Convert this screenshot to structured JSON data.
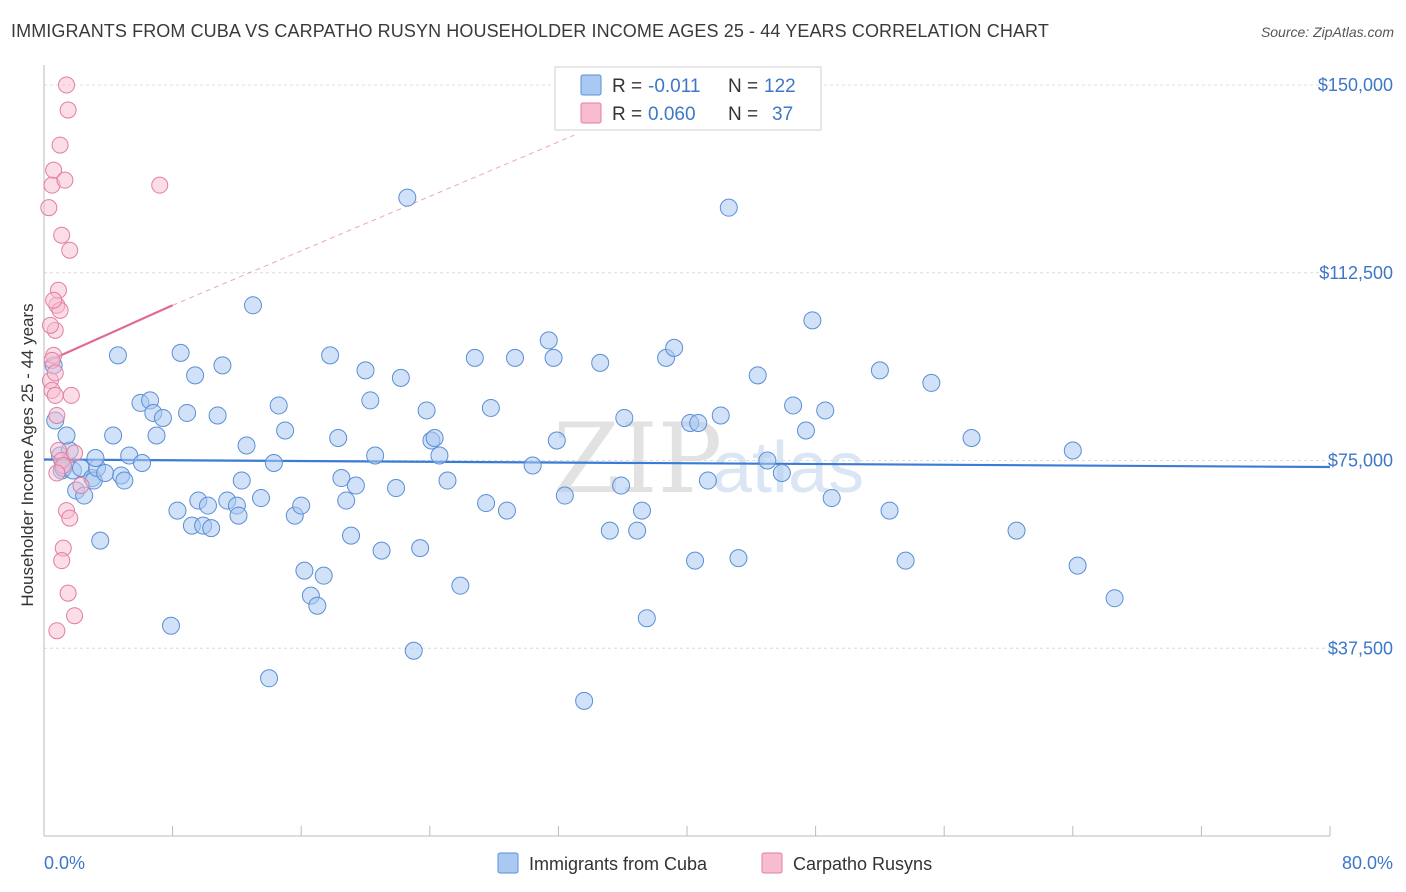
{
  "title": "IMMIGRANTS FROM CUBA VS CARPATHO RUSYN HOUSEHOLDER INCOME AGES 25 - 44 YEARS CORRELATION CHART",
  "source": "Source: ZipAtlas.com",
  "colors": {
    "blue_fill": "#a9c9f2",
    "blue_stroke": "#5b8fd4",
    "blue_line": "#3a7bd5",
    "pink_fill": "#f7bcd0",
    "pink_stroke": "#e27ea0",
    "pink_line": "#e06a94",
    "grid": "#dcdcdc",
    "label_blue": "#3d77c8"
  },
  "legend": {
    "rows": [
      {
        "r_label": "R =",
        "r_value": "-0.011",
        "n_label": "N =",
        "n_value": "122"
      },
      {
        "r_label": "R =",
        "r_value": "0.060",
        "n_label": "N =",
        "n_value": "37"
      }
    ]
  },
  "bottom_legend": [
    "Immigrants from Cuba",
    "Carpatho Rusyns"
  ],
  "watermark": {
    "zip": "ZIP",
    "atlas": "atlas"
  },
  "chart_data": {
    "type": "scatter",
    "xlabel": "",
    "ylabel": "Householder Income Ages 25 - 44 years",
    "x_tick_labels": [
      "0.0%",
      "80.0%"
    ],
    "y_tick_labels": [
      "$150,000",
      "$112,500",
      "$75,000",
      "$37,500"
    ],
    "y_ticks": [
      150000,
      112500,
      75000,
      37500
    ],
    "xlim": [
      0,
      80
    ],
    "ylim": [
      0,
      153000
    ],
    "grid": true,
    "legend_position": "top-center",
    "series": [
      {
        "name": "Immigrants from Cuba",
        "points": [
          [
            0.6,
            94000
          ],
          [
            0.7,
            83000
          ],
          [
            1.0,
            76000
          ],
          [
            1.1,
            73000
          ],
          [
            1.2,
            73500
          ],
          [
            1.6,
            77000
          ],
          [
            1.8,
            73000
          ],
          [
            2.0,
            69000
          ],
          [
            2.3,
            73500
          ],
          [
            2.5,
            68000
          ],
          [
            3.0,
            71500
          ],
          [
            3.1,
            71000
          ],
          [
            3.3,
            73500
          ],
          [
            3.5,
            59000
          ],
          [
            3.8,
            72500
          ],
          [
            4.3,
            80000
          ],
          [
            4.6,
            96000
          ],
          [
            4.8,
            72000
          ],
          [
            5.0,
            71000
          ],
          [
            5.3,
            76000
          ],
          [
            6.0,
            86500
          ],
          [
            6.1,
            74500
          ],
          [
            6.6,
            87000
          ],
          [
            6.8,
            84500
          ],
          [
            7.0,
            80000
          ],
          [
            7.4,
            83500
          ],
          [
            7.9,
            42000
          ],
          [
            8.3,
            65000
          ],
          [
            8.5,
            96500
          ],
          [
            8.9,
            84500
          ],
          [
            9.2,
            62000
          ],
          [
            9.4,
            92000
          ],
          [
            9.6,
            67000
          ],
          [
            9.9,
            62000
          ],
          [
            10.2,
            66000
          ],
          [
            10.4,
            61500
          ],
          [
            10.8,
            84000
          ],
          [
            11.1,
            94000
          ],
          [
            11.4,
            67000
          ],
          [
            12.0,
            66000
          ],
          [
            12.1,
            64000
          ],
          [
            12.3,
            71000
          ],
          [
            12.6,
            78000
          ],
          [
            13.0,
            106000
          ],
          [
            13.5,
            67500
          ],
          [
            14.0,
            31500
          ],
          [
            14.3,
            74500
          ],
          [
            14.6,
            86000
          ],
          [
            15.0,
            81000
          ],
          [
            15.6,
            64000
          ],
          [
            16.0,
            66000
          ],
          [
            16.2,
            53000
          ],
          [
            16.6,
            48000
          ],
          [
            17.0,
            46000
          ],
          [
            17.4,
            52000
          ],
          [
            17.8,
            96000
          ],
          [
            18.3,
            79500
          ],
          [
            18.5,
            71500
          ],
          [
            18.8,
            67000
          ],
          [
            19.1,
            60000
          ],
          [
            19.4,
            70000
          ],
          [
            20.0,
            93000
          ],
          [
            20.3,
            87000
          ],
          [
            20.6,
            76000
          ],
          [
            21.0,
            57000
          ],
          [
            21.9,
            69500
          ],
          [
            22.2,
            91500
          ],
          [
            23.0,
            37000
          ],
          [
            23.4,
            57500
          ],
          [
            23.8,
            85000
          ],
          [
            24.1,
            79000
          ],
          [
            24.3,
            79500
          ],
          [
            24.6,
            76000
          ],
          [
            25.1,
            71000
          ],
          [
            25.9,
            50000
          ],
          [
            26.8,
            95500
          ],
          [
            27.5,
            66500
          ],
          [
            27.8,
            85500
          ],
          [
            28.8,
            65000
          ],
          [
            29.3,
            95500
          ],
          [
            30.4,
            74000
          ],
          [
            31.4,
            99000
          ],
          [
            31.7,
            95500
          ],
          [
            31.9,
            79000
          ],
          [
            32.4,
            68000
          ],
          [
            33.6,
            27000
          ],
          [
            34.6,
            94500
          ],
          [
            35.2,
            61000
          ],
          [
            35.9,
            70000
          ],
          [
            36.1,
            83500
          ],
          [
            36.9,
            61000
          ],
          [
            37.2,
            65000
          ],
          [
            37.5,
            43500
          ],
          [
            38.7,
            95500
          ],
          [
            39.2,
            97500
          ],
          [
            40.2,
            82500
          ],
          [
            40.5,
            55000
          ],
          [
            40.7,
            82500
          ],
          [
            41.3,
            71000
          ],
          [
            42.1,
            84000
          ],
          [
            42.6,
            125500
          ],
          [
            43.2,
            55500
          ],
          [
            44.4,
            92000
          ],
          [
            45.0,
            75000
          ],
          [
            45.9,
            72500
          ],
          [
            46.6,
            86000
          ],
          [
            47.4,
            81000
          ],
          [
            47.8,
            103000
          ],
          [
            48.6,
            85000
          ],
          [
            49.0,
            67500
          ],
          [
            52.0,
            93000
          ],
          [
            52.6,
            65000
          ],
          [
            53.6,
            55000
          ],
          [
            55.2,
            90500
          ],
          [
            57.7,
            79500
          ],
          [
            60.5,
            61000
          ],
          [
            64.0,
            77000
          ],
          [
            64.3,
            54000
          ],
          [
            66.6,
            47500
          ],
          [
            22.6,
            127500
          ],
          [
            1.4,
            80000
          ],
          [
            3.2,
            75500
          ]
        ]
      },
      {
        "name": "Carpatho Rusyns",
        "points": [
          [
            0.3,
            125500
          ],
          [
            0.5,
            130000
          ],
          [
            0.6,
            133000
          ],
          [
            0.7,
            101000
          ],
          [
            0.8,
            106000
          ],
          [
            0.9,
            109000
          ],
          [
            1.0,
            105000
          ],
          [
            0.6,
            96000
          ],
          [
            0.4,
            91000
          ],
          [
            0.5,
            89000
          ],
          [
            0.7,
            88000
          ],
          [
            0.8,
            84000
          ],
          [
            1.1,
            120000
          ],
          [
            1.3,
            131000
          ],
          [
            1.0,
            138000
          ],
          [
            1.5,
            145000
          ],
          [
            1.4,
            150000
          ],
          [
            1.6,
            117000
          ],
          [
            0.9,
            77000
          ],
          [
            1.1,
            75000
          ],
          [
            1.2,
            74000
          ],
          [
            0.8,
            72500
          ],
          [
            1.4,
            65000
          ],
          [
            1.6,
            63500
          ],
          [
            2.3,
            70000
          ],
          [
            1.2,
            57500
          ],
          [
            1.1,
            55000
          ],
          [
            1.5,
            48500
          ],
          [
            1.9,
            44000
          ],
          [
            0.8,
            41000
          ],
          [
            7.2,
            130000
          ],
          [
            0.4,
            102000
          ],
          [
            0.6,
            107000
          ],
          [
            0.5,
            95000
          ],
          [
            1.7,
            88000
          ],
          [
            1.9,
            76500
          ],
          [
            0.7,
            92500
          ]
        ]
      }
    ],
    "trend_lines": [
      {
        "series": "Immigrants from Cuba",
        "x": [
          0,
          80
        ],
        "y": [
          75200,
          73700
        ]
      },
      {
        "series": "Carpatho Rusyns",
        "x": [
          0,
          8
        ],
        "y": [
          94500,
          106000
        ],
        "dashed_extension_to": [
          33,
          140000
        ]
      }
    ]
  }
}
